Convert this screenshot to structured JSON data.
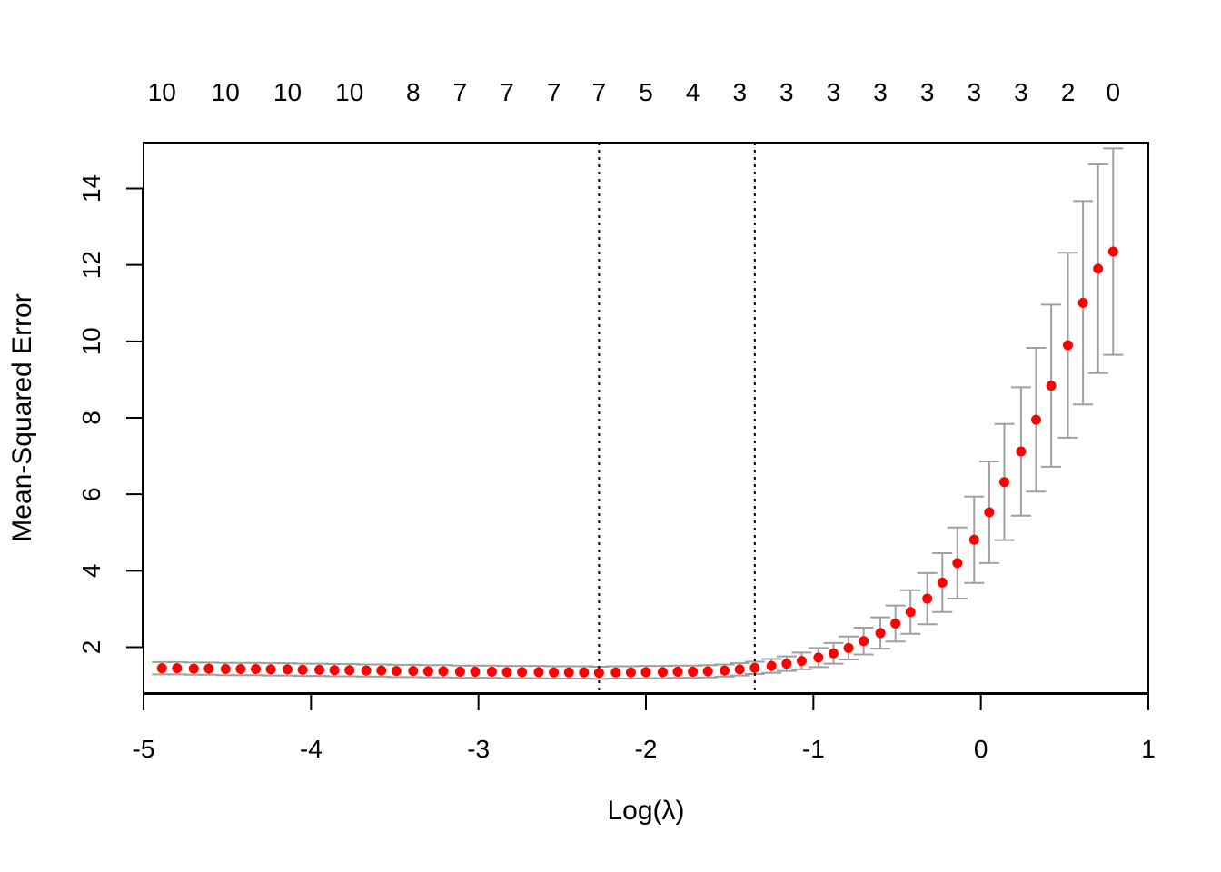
{
  "chart_data": {
    "type": "scatter",
    "title": "",
    "xlabel": "Log(λ)",
    "ylabel": "Mean-Squared Error",
    "xlim": [
      -5.0,
      1.0
    ],
    "ylim": [
      0.8,
      15.2
    ],
    "xticks": [
      -5,
      -4,
      -3,
      -2,
      -1,
      0,
      1
    ],
    "yticks": [
      2,
      4,
      6,
      8,
      10,
      12,
      14
    ],
    "grid": false,
    "legend": "none",
    "vlines": [
      -2.28,
      -1.35
    ],
    "top_axis": {
      "x": [
        -4.89,
        -4.51,
        -4.14,
        -3.77,
        -3.39,
        -3.11,
        -2.83,
        -2.55,
        -2.28,
        -2.0,
        -1.72,
        -1.44,
        -1.16,
        -0.88,
        -0.6,
        -0.32,
        -0.04,
        0.24,
        0.52,
        0.79
      ],
      "labels": [
        "10",
        "10",
        "10",
        "10",
        "8",
        "7",
        "7",
        "7",
        "7",
        "5",
        "4",
        "3",
        "3",
        "3",
        "3",
        "3",
        "3",
        "3",
        "2",
        "0"
      ]
    },
    "series": [
      {
        "x": [
          -4.89,
          -4.8,
          -4.7,
          -4.61,
          -4.51,
          -4.42,
          -4.33,
          -4.24,
          -4.14,
          -4.05,
          -3.95,
          -3.86,
          -3.77,
          -3.67,
          -3.58,
          -3.49,
          -3.39,
          -3.3,
          -3.21,
          -3.11,
          -3.02,
          -2.92,
          -2.83,
          -2.74,
          -2.64,
          -2.55,
          -2.46,
          -2.37,
          -2.28,
          -2.18,
          -2.09,
          -2.0,
          -1.9,
          -1.81,
          -1.72,
          -1.63,
          -1.53,
          -1.44,
          -1.35,
          -1.25,
          -1.16,
          -1.07,
          -0.97,
          -0.88,
          -0.79,
          -0.7,
          -0.6,
          -0.51,
          -0.42,
          -0.32,
          -0.23,
          -0.14,
          -0.04,
          0.05,
          0.14,
          0.24,
          0.33,
          0.42,
          0.52,
          0.61,
          0.7,
          0.79
        ],
        "y": [
          1.45,
          1.45,
          1.44,
          1.44,
          1.43,
          1.43,
          1.43,
          1.42,
          1.42,
          1.41,
          1.41,
          1.4,
          1.4,
          1.39,
          1.39,
          1.38,
          1.38,
          1.37,
          1.37,
          1.36,
          1.36,
          1.36,
          1.35,
          1.35,
          1.35,
          1.34,
          1.34,
          1.34,
          1.33,
          1.34,
          1.34,
          1.35,
          1.35,
          1.36,
          1.36,
          1.37,
          1.39,
          1.42,
          1.46,
          1.51,
          1.57,
          1.64,
          1.73,
          1.84,
          1.98,
          2.16,
          2.37,
          2.62,
          2.92,
          3.27,
          3.69,
          4.2,
          4.81,
          5.53,
          6.32,
          7.12,
          7.95,
          8.84,
          9.9,
          11.01,
          11.9,
          12.35
        ],
        "lower": [
          1.29,
          1.29,
          1.28,
          1.28,
          1.27,
          1.27,
          1.27,
          1.26,
          1.26,
          1.25,
          1.25,
          1.24,
          1.24,
          1.23,
          1.23,
          1.22,
          1.22,
          1.21,
          1.21,
          1.2,
          1.2,
          1.2,
          1.19,
          1.19,
          1.19,
          1.18,
          1.18,
          1.18,
          1.17,
          1.18,
          1.18,
          1.19,
          1.19,
          1.2,
          1.2,
          1.21,
          1.23,
          1.26,
          1.3,
          1.33,
          1.38,
          1.42,
          1.48,
          1.57,
          1.68,
          1.81,
          1.96,
          2.15,
          2.35,
          2.6,
          2.92,
          3.27,
          3.68,
          4.2,
          4.8,
          5.44,
          6.07,
          6.72,
          7.48,
          8.35,
          9.17,
          9.65
        ],
        "upper": [
          1.61,
          1.61,
          1.6,
          1.6,
          1.59,
          1.59,
          1.59,
          1.58,
          1.58,
          1.57,
          1.57,
          1.56,
          1.56,
          1.55,
          1.55,
          1.54,
          1.54,
          1.53,
          1.53,
          1.52,
          1.52,
          1.52,
          1.51,
          1.51,
          1.51,
          1.5,
          1.5,
          1.5,
          1.49,
          1.5,
          1.5,
          1.51,
          1.51,
          1.52,
          1.52,
          1.53,
          1.55,
          1.58,
          1.62,
          1.69,
          1.76,
          1.86,
          1.98,
          2.11,
          2.28,
          2.51,
          2.78,
          3.09,
          3.49,
          3.94,
          4.46,
          5.13,
          5.94,
          6.86,
          7.84,
          8.8,
          9.83,
          10.96,
          12.32,
          13.67,
          14.63,
          15.05
        ],
        "point_color": "#ff0000",
        "errorbar_color": "#a0a0a0"
      }
    ]
  }
}
